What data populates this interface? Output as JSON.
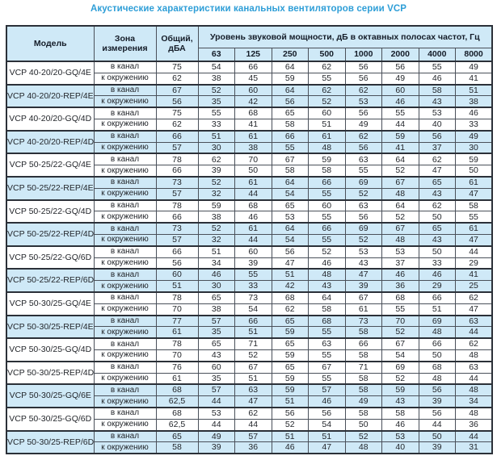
{
  "title": "Акустические характеристики канальных вентиляторов  серии VCP",
  "colors": {
    "title_blue": "#2e9ed7",
    "row_blue": "#cfe9f7",
    "border_thin": "#4a505a",
    "border_thick": "#2b3038",
    "text_dark": "#23262b"
  },
  "table": {
    "headers": {
      "model": "Модель",
      "zone": "Зона\nизмерения",
      "total": "Общий,\nдБА",
      "spl_group": "Уровень звуковой мощности, дБ в октавных полосах частот, Гц",
      "frequencies": [
        "63",
        "125",
        "250",
        "500",
        "1000",
        "2000",
        "4000",
        "8000"
      ]
    },
    "groups": [
      {
        "model": "VCP 40-20/20-GQ/4E",
        "shaded": false,
        "rows": [
          {
            "zone": "в канал",
            "total": "75",
            "values": [
              54,
              66,
              64,
              62,
              56,
              56,
              55,
              49
            ]
          },
          {
            "zone": "к окружению",
            "total": "62",
            "values": [
              38,
              45,
              59,
              55,
              56,
              49,
              46,
              41
            ]
          }
        ]
      },
      {
        "model": "VCP 40-20/20-REP/4E",
        "shaded": true,
        "rows": [
          {
            "zone": "в канал",
            "total": "67",
            "values": [
              52,
              60,
              64,
              62,
              62,
              60,
              58,
              51
            ]
          },
          {
            "zone": "к окружению",
            "total": "56",
            "values": [
              35,
              42,
              56,
              52,
              53,
              46,
              43,
              38
            ]
          }
        ]
      },
      {
        "model": "VCP 40-20/20-GQ/4D",
        "shaded": false,
        "rows": [
          {
            "zone": "в канал",
            "total": "75",
            "values": [
              55,
              68,
              65,
              60,
              56,
              55,
              53,
              46
            ]
          },
          {
            "zone": "к окружению",
            "total": "62",
            "values": [
              33,
              41,
              58,
              51,
              49,
              44,
              40,
              33
            ]
          }
        ]
      },
      {
        "model": "VCP 40-20/20-REP/4D",
        "shaded": true,
        "rows": [
          {
            "zone": "в канал",
            "total": "66",
            "values": [
              51,
              61,
              66,
              61,
              62,
              59,
              56,
              49
            ]
          },
          {
            "zone": "к окружению",
            "total": "57",
            "values": [
              30,
              38,
              55,
              48,
              56,
              41,
              37,
              30
            ]
          }
        ]
      },
      {
        "model": "VCP 50-25/22-GQ/4E",
        "shaded": false,
        "rows": [
          {
            "zone": "в канал",
            "total": "78",
            "values": [
              62,
              70,
              67,
              59,
              63,
              64,
              62,
              59
            ]
          },
          {
            "zone": "к окружению",
            "total": "66",
            "values": [
              39,
              50,
              58,
              58,
              55,
              52,
              47,
              50
            ]
          }
        ]
      },
      {
        "model": "VCP 50-25/22-REP/4E",
        "shaded": true,
        "rows": [
          {
            "zone": "в канал",
            "total": "73",
            "values": [
              52,
              61,
              64,
              66,
              69,
              67,
              65,
              61
            ]
          },
          {
            "zone": "к окружению",
            "total": "57",
            "values": [
              32,
              44,
              54,
              55,
              52,
              48,
              43,
              47
            ]
          }
        ]
      },
      {
        "model": "VCP 50-25/22-GQ/4D",
        "shaded": false,
        "rows": [
          {
            "zone": "в канал",
            "total": "78",
            "values": [
              59,
              68,
              65,
              60,
              63,
              64,
              62,
              58
            ]
          },
          {
            "zone": "к окружению",
            "total": "66",
            "values": [
              38,
              46,
              53,
              55,
              56,
              52,
              50,
              55
            ]
          }
        ]
      },
      {
        "model": "VCP 50-25/22-REP/4D",
        "shaded": true,
        "rows": [
          {
            "zone": "в канал",
            "total": "73",
            "values": [
              52,
              61,
              64,
              66,
              69,
              67,
              65,
              61
            ]
          },
          {
            "zone": "к окружению",
            "total": "57",
            "values": [
              32,
              44,
              54,
              55,
              52,
              48,
              43,
              47
            ]
          }
        ]
      },
      {
        "model": "VCP 50-25/22-GQ/6D",
        "shaded": false,
        "rows": [
          {
            "zone": "в канал",
            "total": "66",
            "values": [
              51,
              60,
              56,
              52,
              53,
              53,
              50,
              44
            ]
          },
          {
            "zone": "к окружению",
            "total": "56",
            "values": [
              34,
              39,
              47,
              46,
              43,
              37,
              33,
              29
            ]
          }
        ]
      },
      {
        "model": "VCP 50-25/22-REP/6D",
        "shaded": true,
        "rows": [
          {
            "zone": "в канал",
            "total": "60",
            "values": [
              46,
              55,
              51,
              48,
              47,
              46,
              46,
              41
            ]
          },
          {
            "zone": "к окружению",
            "total": "51",
            "values": [
              30,
              33,
              42,
              43,
              39,
              36,
              29,
              25
            ]
          }
        ]
      },
      {
        "model": "VCP 50-30/25-GQ/4E",
        "shaded": false,
        "rows": [
          {
            "zone": "в канал",
            "total": "78",
            "values": [
              65,
              73,
              68,
              64,
              67,
              68,
              66,
              62
            ]
          },
          {
            "zone": "к окружению",
            "total": "70",
            "values": [
              38,
              54,
              62,
              58,
              61,
              55,
              51,
              47
            ]
          }
        ]
      },
      {
        "model": "VCP 50-30/25-REP/4E",
        "shaded": true,
        "rows": [
          {
            "zone": "в канал",
            "total": "77",
            "values": [
              57,
              66,
              65,
              68,
              73,
              70,
              69,
              63
            ]
          },
          {
            "zone": "к окружению",
            "total": "61",
            "values": [
              35,
              51,
              59,
              55,
              58,
              52,
              48,
              44
            ]
          }
        ]
      },
      {
        "model": "VCP 50-30/25-GQ/4D",
        "shaded": false,
        "rows": [
          {
            "zone": "в канал",
            "total": "78",
            "values": [
              65,
              71,
              65,
              63,
              66,
              67,
              66,
              62
            ]
          },
          {
            "zone": "к окружению",
            "total": "70",
            "values": [
              43,
              52,
              59,
              55,
              58,
              54,
              50,
              48
            ]
          }
        ]
      },
      {
        "model": "VCP 50-30/25-REP/4D",
        "shaded": false,
        "rows": [
          {
            "zone": "в канал",
            "total": "76",
            "values": [
              60,
              67,
              65,
              67,
              71,
              69,
              68,
              63
            ]
          },
          {
            "zone": "к окружению",
            "total": "61",
            "values": [
              35,
              51,
              59,
              55,
              58,
              52,
              48,
              44
            ]
          }
        ]
      },
      {
        "model": "VCP 50-30/25-GQ/6E",
        "shaded": true,
        "rows": [
          {
            "zone": "в канал",
            "total": "68",
            "values": [
              57,
              63,
              59,
              57,
              58,
              59,
              56,
              48
            ]
          },
          {
            "zone": "к окружению",
            "total": "62,5",
            "values": [
              44,
              47,
              51,
              46,
              49,
              43,
              39,
              34
            ]
          }
        ]
      },
      {
        "model": "VCP 50-30/25-GQ/6D",
        "shaded": false,
        "rows": [
          {
            "zone": "в канал",
            "total": "68",
            "values": [
              53,
              62,
              56,
              56,
              58,
              58,
              56,
              48
            ]
          },
          {
            "zone": "к окружению",
            "total": "62,5",
            "values": [
              44,
              44,
              52,
              54,
              50,
              46,
              44,
              36
            ]
          }
        ]
      },
      {
        "model": "VCP 50-30/25-REP/6D",
        "shaded": true,
        "rows": [
          {
            "zone": "в канал",
            "total": "65",
            "values": [
              49,
              57,
              51,
              51,
              52,
              53,
              50,
              44
            ]
          },
          {
            "zone": "к окружению",
            "total": "58",
            "values": [
              39,
              36,
              46,
              47,
              48,
              40,
              39,
              31
            ]
          }
        ]
      }
    ]
  }
}
